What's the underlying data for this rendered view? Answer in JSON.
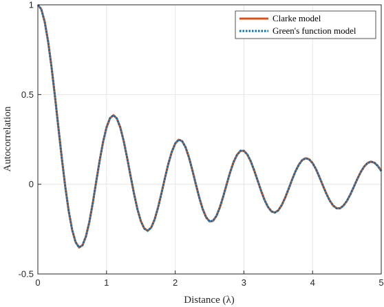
{
  "chart_data": {
    "type": "line",
    "title": "",
    "xlabel": "Distance (λ)",
    "ylabel": "Autocorrelation",
    "xlim": [
      0,
      5
    ],
    "ylim": [
      -0.5,
      1
    ],
    "xticks": [
      "0",
      "1",
      "2",
      "3",
      "4",
      "5"
    ],
    "yticks": [
      "-0.5",
      "0",
      "0.5",
      "1"
    ],
    "grid": true,
    "legend_position": "top-right",
    "x": [
      0,
      0.05,
      0.1,
      0.15,
      0.2,
      0.25,
      0.3,
      0.35,
      0.4,
      0.45,
      0.5,
      0.55,
      0.6,
      0.65,
      0.7,
      0.75,
      0.8,
      0.85,
      0.9,
      0.95,
      1.0,
      1.05,
      1.1,
      1.15,
      1.2,
      1.25,
      1.3,
      1.35,
      1.4,
      1.45,
      1.5,
      1.55,
      1.6,
      1.65,
      1.7,
      1.75,
      1.8,
      1.85,
      1.9,
      1.95,
      2.0,
      2.05,
      2.1,
      2.15,
      2.2,
      2.25,
      2.3,
      2.35,
      2.4,
      2.45,
      2.5,
      2.55,
      2.6,
      2.65,
      2.7,
      2.75,
      2.8,
      2.85,
      2.9,
      2.95,
      3.0,
      3.05,
      3.1,
      3.15,
      3.2,
      3.25,
      3.3,
      3.35,
      3.4,
      3.45,
      3.5,
      3.55,
      3.6,
      3.65,
      3.7,
      3.75,
      3.8,
      3.85,
      3.9,
      3.95,
      4.0,
      4.05,
      4.1,
      4.15,
      4.2,
      4.25,
      4.3,
      4.35,
      4.4,
      4.45,
      4.5,
      4.55,
      4.6,
      4.65,
      4.7,
      4.75,
      4.8,
      4.85,
      4.9,
      4.95,
      5.0
    ],
    "series": [
      {
        "name": "Clarke model",
        "color": "#D95319",
        "style": "solid",
        "values": [
          1.0,
          0.976,
          0.905,
          0.794,
          0.651,
          0.487,
          0.313,
          0.142,
          -0.016,
          -0.151,
          -0.255,
          -0.323,
          -0.352,
          -0.34,
          -0.291,
          -0.21,
          -0.104,
          0.015,
          0.132,
          0.236,
          0.317,
          0.368,
          0.385,
          0.367,
          0.317,
          0.241,
          0.147,
          0.046,
          -0.052,
          -0.139,
          -0.206,
          -0.247,
          -0.259,
          -0.242,
          -0.197,
          -0.13,
          -0.05,
          0.034,
          0.114,
          0.18,
          0.227,
          0.248,
          0.241,
          0.207,
          0.15,
          0.078,
          0.001,
          -0.074,
          -0.138,
          -0.184,
          -0.207,
          -0.204,
          -0.177,
          -0.129,
          -0.067,
          0.001,
          0.067,
          0.124,
          0.164,
          0.186,
          0.186,
          0.166,
          0.128,
          0.077,
          0.021,
          -0.036,
          -0.087,
          -0.126,
          -0.151,
          -0.158,
          -0.146,
          -0.117,
          -0.076,
          -0.027,
          0.024,
          0.071,
          0.109,
          0.135,
          0.145,
          0.139,
          0.118,
          0.084,
          0.04,
          -0.007,
          -0.052,
          -0.091,
          -0.119,
          -0.134,
          -0.134,
          -0.119,
          -0.093,
          -0.057,
          -0.015,
          0.028,
          0.067,
          0.098,
          0.118,
          0.126,
          0.12,
          0.102,
          0.074
        ]
      },
      {
        "name": "Green's function model",
        "color": "#0072BD",
        "style": "dotted",
        "values": [
          1.0,
          0.976,
          0.905,
          0.794,
          0.651,
          0.487,
          0.313,
          0.142,
          -0.016,
          -0.151,
          -0.255,
          -0.323,
          -0.352,
          -0.34,
          -0.291,
          -0.21,
          -0.104,
          0.015,
          0.132,
          0.236,
          0.317,
          0.368,
          0.385,
          0.367,
          0.317,
          0.241,
          0.147,
          0.046,
          -0.052,
          -0.139,
          -0.206,
          -0.247,
          -0.259,
          -0.242,
          -0.197,
          -0.13,
          -0.05,
          0.034,
          0.114,
          0.18,
          0.227,
          0.248,
          0.241,
          0.207,
          0.15,
          0.078,
          0.001,
          -0.074,
          -0.138,
          -0.184,
          -0.207,
          -0.204,
          -0.177,
          -0.129,
          -0.067,
          0.001,
          0.067,
          0.124,
          0.164,
          0.186,
          0.186,
          0.166,
          0.128,
          0.077,
          0.021,
          -0.036,
          -0.087,
          -0.126,
          -0.151,
          -0.158,
          -0.146,
          -0.117,
          -0.076,
          -0.027,
          0.024,
          0.071,
          0.109,
          0.135,
          0.145,
          0.139,
          0.118,
          0.084,
          0.04,
          -0.007,
          -0.052,
          -0.091,
          -0.119,
          -0.134,
          -0.134,
          -0.119,
          -0.093,
          -0.057,
          -0.015,
          0.028,
          0.067,
          0.098,
          0.118,
          0.126,
          0.12,
          0.102,
          0.074
        ]
      }
    ]
  }
}
